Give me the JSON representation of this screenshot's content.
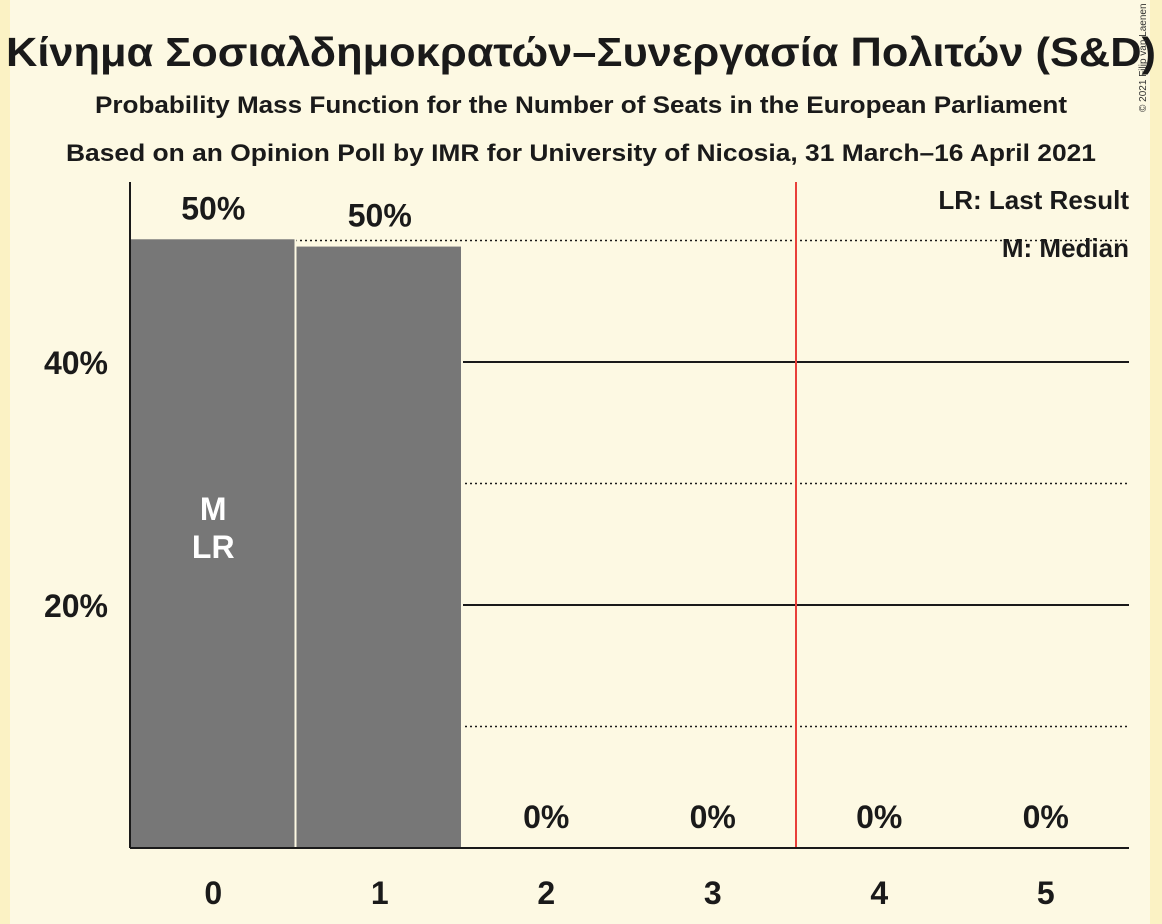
{
  "title": "Κίνημα Σοσιαλδημοκρατών–Συνεργασία Πολιτών (S&D)",
  "subtitle_1": "Probability Mass Function for the Number of Seats in the European Parliament",
  "subtitle_2": "Based on an Opinion Poll by IMR for University of Nicosia, 31 March–16 April 2021",
  "legend": {
    "last_result": "LR: Last Result",
    "median": "M: Median"
  },
  "copyright": "© 2021 Filip van Laenen",
  "colors": {
    "background": "#fdf9e3",
    "bar": "#777777",
    "majority_line": "#e8403a",
    "axis": "#1a1a1a"
  },
  "chart_data": {
    "type": "bar",
    "categories": [
      "0",
      "1",
      "2",
      "3",
      "4",
      "5"
    ],
    "values": [
      50.1,
      49.5,
      0,
      0,
      0,
      0
    ],
    "data_labels": [
      "50%",
      "50%",
      "0%",
      "0%",
      "0%",
      "0%"
    ],
    "ylim": [
      0,
      55
    ],
    "yticks_labeled": [
      {
        "value": 20,
        "label": "20%"
      },
      {
        "value": 40,
        "label": "40%"
      }
    ],
    "gridlines_solid": [
      20,
      40
    ],
    "gridlines_dotted": [
      10,
      30,
      50
    ],
    "majority_threshold_between": [
      3,
      4
    ],
    "bar_markers": [
      {
        "category": "0",
        "lines": [
          "M",
          "LR"
        ]
      }
    ],
    "xlabel": "",
    "ylabel": "",
    "legend_position": "top-right"
  }
}
